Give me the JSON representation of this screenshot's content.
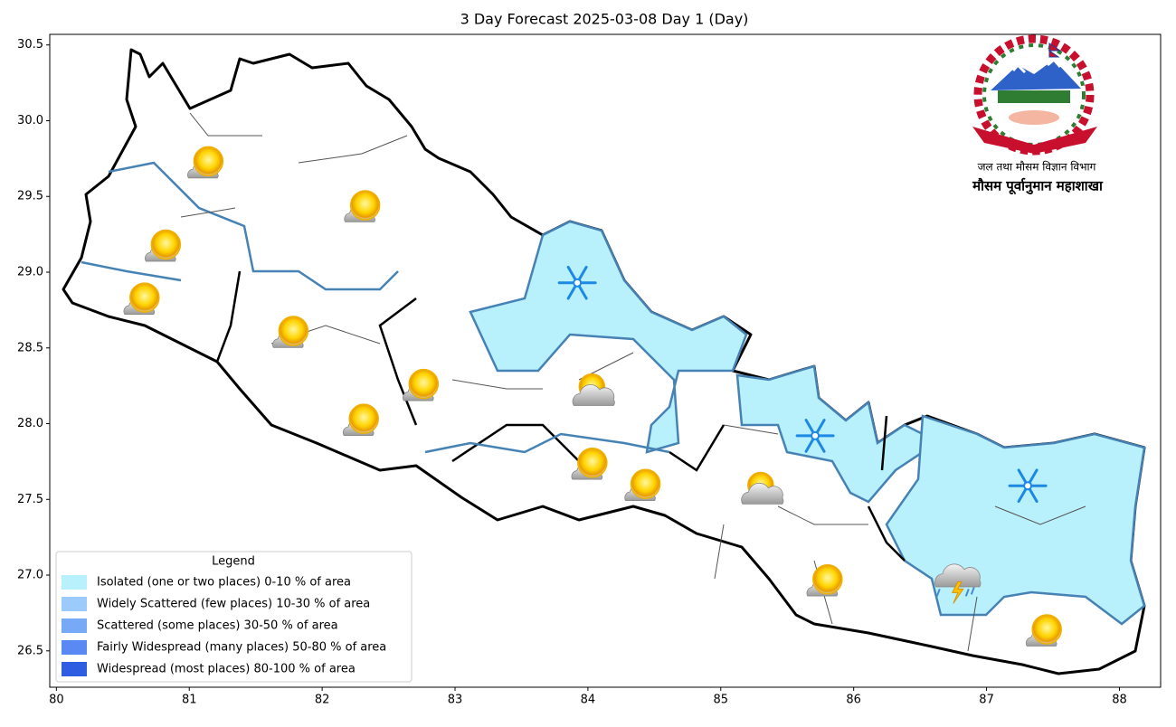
{
  "chart_data": {
    "type": "map",
    "title": "3 Day Forecast 2025-03-08 Day 1 (Day)",
    "xlim": [
      79.95,
      88.31
    ],
    "ylim": [
      26.26,
      30.57
    ],
    "xticks": [
      80,
      81,
      82,
      83,
      84,
      85,
      86,
      87,
      88
    ],
    "yticks": [
      26.5,
      {
        "value": 27,
        "label": "27.0"
      },
      27.5,
      {
        "value": 28,
        "label": "28.0"
      },
      28.5,
      {
        "value": 29,
        "label": "29.0"
      },
      29.5,
      {
        "value": 30,
        "label": "30.0"
      },
      30.5
    ],
    "legend": {
      "title": "Legend",
      "position": "lower left",
      "entries": [
        {
          "label": "Isolated (one or two places)  0-10 % of area",
          "color": "#b8f0fc"
        },
        {
          "label": "Widely Scattered (few places) 10-30 % of area",
          "color": "#9bcafb"
        },
        {
          "label": "Scattered (some places) 30-50  % of area",
          "color": "#78a9f6"
        },
        {
          "label": "Fairly Widespread (many places) 50-80 % of area",
          "color": "#5a89f4"
        },
        {
          "label": "Widespread (most places) 80-100 % of area",
          "color": "#2f5de2"
        }
      ]
    },
    "markers": {
      "x": [
        81.13,
        82.31,
        80.81,
        80.65,
        81.77,
        82.75,
        82.3,
        84.02,
        84.42,
        85.79,
        87.44,
        83.92,
        85.71,
        87.31,
        84.03,
        85.3,
        86.77
      ],
      "y": [
        29.72,
        29.43,
        29.17,
        28.82,
        28.6,
        28.25,
        28.02,
        27.73,
        27.59,
        26.96,
        26.63,
        28.93,
        27.92,
        27.59,
        28.22,
        27.57,
        26.98
      ],
      "symbol": [
        "sun",
        "sun",
        "sun",
        "sun",
        "sun",
        "sun",
        "sun",
        "sun",
        "sun",
        "sun",
        "sun",
        "snow",
        "snow",
        "snow",
        "partly-cloudy",
        "partly-cloudy",
        "thunder"
      ]
    },
    "logo": {
      "line1": "जल तथा मौसम विज्ञान विभाग",
      "line2": "मौसम पूर्वानुमान महाशाखा"
    }
  }
}
